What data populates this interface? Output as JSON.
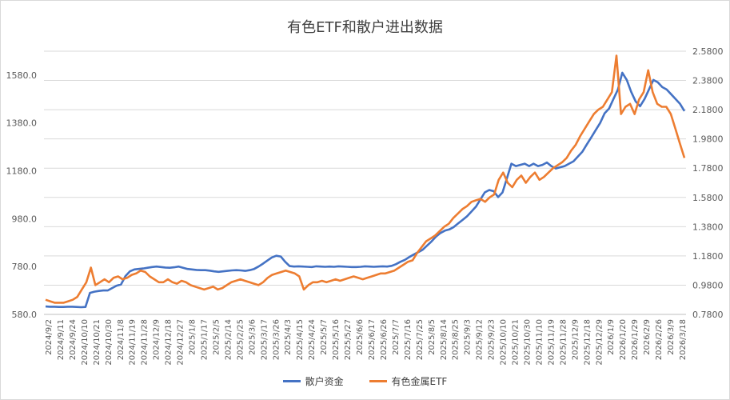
{
  "chart_data": {
    "type": "line",
    "title": "有色ETF和散户进出数据",
    "y_left": {
      "ticks": [
        "580.0",
        "780.0",
        "980.0",
        "1180.0",
        "1380.0",
        "1580.0"
      ],
      "lim": [
        580,
        1680
      ]
    },
    "y_right": {
      "ticks": [
        "0.7800",
        "0.9800",
        "1.1800",
        "1.3800",
        "1.5800",
        "1.7800",
        "1.9800",
        "2.1800",
        "2.3800",
        "2.5800"
      ],
      "lim": [
        0.78,
        2.58
      ]
    },
    "x_ticks": [
      "2024/9/2",
      "2024/9/11",
      "2024/9/24",
      "2024/10/10",
      "2024/10/21",
      "2024/10/30",
      "2024/11/8",
      "2024/11/19",
      "2024/11/28",
      "2024/12/9",
      "2024/12/18",
      "2024/12/27",
      "2025/1/8",
      "2025/1/17",
      "2025/2/5",
      "2025/2/14",
      "2025/2/25",
      "2025/3/6",
      "2025/3/17",
      "2025/3/26",
      "2025/4/3",
      "2025/4/15",
      "2025/4/24",
      "2025/5/7",
      "2025/5/16",
      "2025/5/27",
      "2025/6/6",
      "2025/6/17",
      "2025/6/26",
      "2025/7/7",
      "2025/7/16",
      "2025/7/25",
      "2025/8/5",
      "2025/8/14",
      "2025/8/25",
      "2025/9/3",
      "2025/9/12",
      "2025/9/23",
      "2025/10/10",
      "2025/10/21",
      "2025/10/30",
      "2025/11/10",
      "2025/11/19",
      "2025/11/28",
      "2025/12/9",
      "2025/12/18",
      "2025/12/29",
      "2026/1/9",
      "2026/1/20",
      "2026/1/29",
      "2026/2/9",
      "2026/2/26",
      "2026/3/9",
      "2026/3/18"
    ],
    "grid": true,
    "legend_position": "bottom",
    "series": [
      {
        "name": "散户资金",
        "axis": "left",
        "color": "#4472C4",
        "values": [
          613,
          612,
          612,
          611,
          611,
          612,
          612,
          611,
          610,
          611,
          670,
          675,
          678,
          680,
          680,
          690,
          700,
          705,
          740,
          760,
          768,
          770,
          772,
          775,
          778,
          780,
          778,
          776,
          775,
          777,
          780,
          775,
          770,
          768,
          766,
          765,
          765,
          763,
          760,
          758,
          760,
          762,
          764,
          765,
          764,
          762,
          765,
          770,
          780,
          792,
          805,
          818,
          825,
          822,
          800,
          782,
          780,
          781,
          780,
          779,
          778,
          781,
          780,
          779,
          780,
          779,
          781,
          780,
          779,
          778,
          778,
          779,
          781,
          780,
          779,
          780,
          781,
          780,
          783,
          790,
          800,
          808,
          820,
          830,
          840,
          850,
          868,
          885,
          905,
          920,
          930,
          935,
          945,
          960,
          975,
          990,
          1010,
          1030,
          1060,
          1090,
          1100,
          1095,
          1070,
          1090,
          1150,
          1210,
          1200,
          1205,
          1210,
          1200,
          1210,
          1200,
          1205,
          1215,
          1200,
          1190,
          1195,
          1200,
          1210,
          1220,
          1240,
          1260,
          1290,
          1320,
          1350,
          1380,
          1420,
          1440,
          1480,
          1520,
          1590,
          1560,
          1510,
          1470,
          1450,
          1480,
          1520,
          1560,
          1550,
          1530,
          1520,
          1500,
          1480,
          1460,
          1430
        ]
      },
      {
        "name": "有色金属ETF",
        "axis": "right",
        "color": "#ED7D31",
        "values": [
          0.88,
          0.87,
          0.86,
          0.86,
          0.86,
          0.87,
          0.88,
          0.9,
          0.95,
          1.0,
          1.1,
          0.98,
          1.0,
          1.02,
          1.0,
          1.03,
          1.04,
          1.02,
          1.03,
          1.05,
          1.06,
          1.08,
          1.07,
          1.04,
          1.02,
          1.0,
          1.0,
          1.02,
          1.0,
          0.99,
          1.01,
          1.0,
          0.98,
          0.97,
          0.96,
          0.95,
          0.96,
          0.97,
          0.95,
          0.96,
          0.98,
          1.0,
          1.01,
          1.02,
          1.01,
          1.0,
          0.99,
          0.98,
          1.0,
          1.03,
          1.05,
          1.06,
          1.07,
          1.08,
          1.07,
          1.06,
          1.04,
          0.95,
          0.98,
          1.0,
          1.0,
          1.01,
          1.0,
          1.01,
          1.02,
          1.01,
          1.02,
          1.03,
          1.04,
          1.03,
          1.02,
          1.03,
          1.04,
          1.05,
          1.06,
          1.06,
          1.07,
          1.08,
          1.1,
          1.12,
          1.14,
          1.15,
          1.2,
          1.24,
          1.28,
          1.3,
          1.32,
          1.35,
          1.38,
          1.4,
          1.44,
          1.47,
          1.5,
          1.52,
          1.55,
          1.56,
          1.57,
          1.55,
          1.58,
          1.6,
          1.7,
          1.75,
          1.68,
          1.65,
          1.7,
          1.73,
          1.68,
          1.72,
          1.75,
          1.7,
          1.72,
          1.75,
          1.78,
          1.8,
          1.82,
          1.85,
          1.9,
          1.94,
          2.0,
          2.05,
          2.1,
          2.15,
          2.18,
          2.2,
          2.25,
          2.3,
          2.55,
          2.15,
          2.2,
          2.22,
          2.15,
          2.25,
          2.3,
          2.45,
          2.3,
          2.22,
          2.2,
          2.2,
          2.15,
          2.05,
          1.95,
          1.85
        ]
      }
    ]
  }
}
